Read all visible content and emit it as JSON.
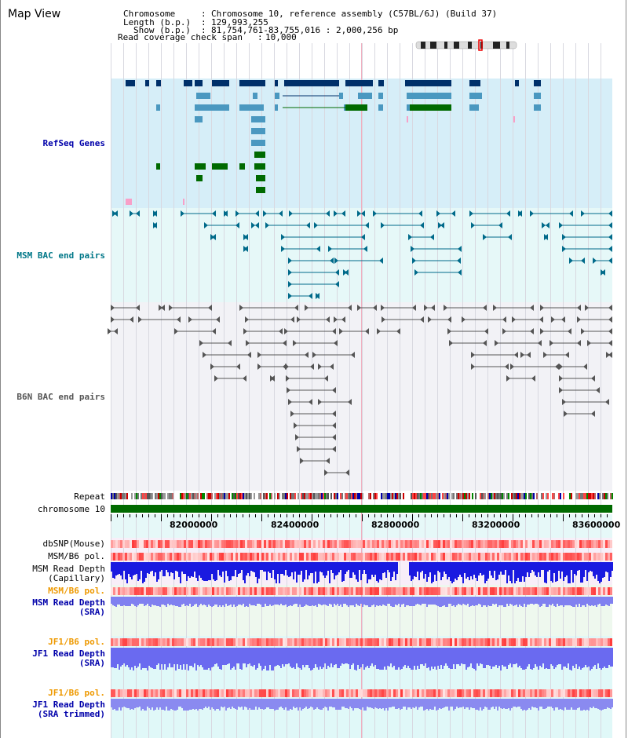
{
  "header": {
    "title": "Map View",
    "chromosome_key": "Chromosome",
    "chromosome_value": "Chromosome 10, reference assembly (C57BL/6J) (Build 37)",
    "length_key": "Length (b.p.)",
    "length_value": "129,993,255",
    "show_key": "Show (b.p.)",
    "show_value": "81,754,761-83,755,016 : 2,000,256 bp",
    "read_coverage_key": "Read coverage check span",
    "read_coverage_value": "10,000"
  },
  "tracks": {
    "refseq": "RefSeq Genes",
    "msm_bac": "MSM BAC end pairs",
    "b6n_bac": "B6N BAC end pairs",
    "repeat": "Repeat",
    "chromosome": "chromosome 10",
    "dbsnp": "dbSNP(Mouse)",
    "msm_b6_pol_1": "MSM/B6 pol.",
    "msm_read_depth_cap_1": "MSM Read Depth",
    "msm_read_depth_cap_2": "(Capillary)",
    "msm_b6_pol_2": "MSM/B6 pol.",
    "msm_read_depth_sra_1": "MSM Read Depth",
    "msm_read_depth_sra_2": "(SRA)",
    "jf1_b6_pol_1": "JF1/B6 pol.",
    "jf1_read_depth_sra_1": "JF1 Read Depth",
    "jf1_read_depth_sra_2": "(SRA)",
    "jf1_b6_pol_2": "JF1/B6 pol.",
    "jf1_read_depth_trim_1": "JF1 Read Depth",
    "jf1_read_depth_trim_2": "(SRA trimmed)"
  },
  "axis": {
    "ticks": [
      "82000000",
      "82400000",
      "82800000",
      "83200000",
      "83600000"
    ]
  },
  "colors": {
    "refseq_label": "#0000aa",
    "msm_bac_label": "#007788",
    "b6n_bac_label": "#555555",
    "pol_label_orange": "#ee9900",
    "depth_label_blue": "#0000aa",
    "refseq_bg": "#d6eef8",
    "msm_bg": "#e6f8f8",
    "b6n_bg": "#f2f2f6",
    "gene_dark": "#00306a",
    "gene_mid": "#4a98c0",
    "gene_green": "#006a00",
    "bac_teal": "#006a8a",
    "bac_gray": "#555555",
    "chrom_bar": "#006a00"
  }
}
